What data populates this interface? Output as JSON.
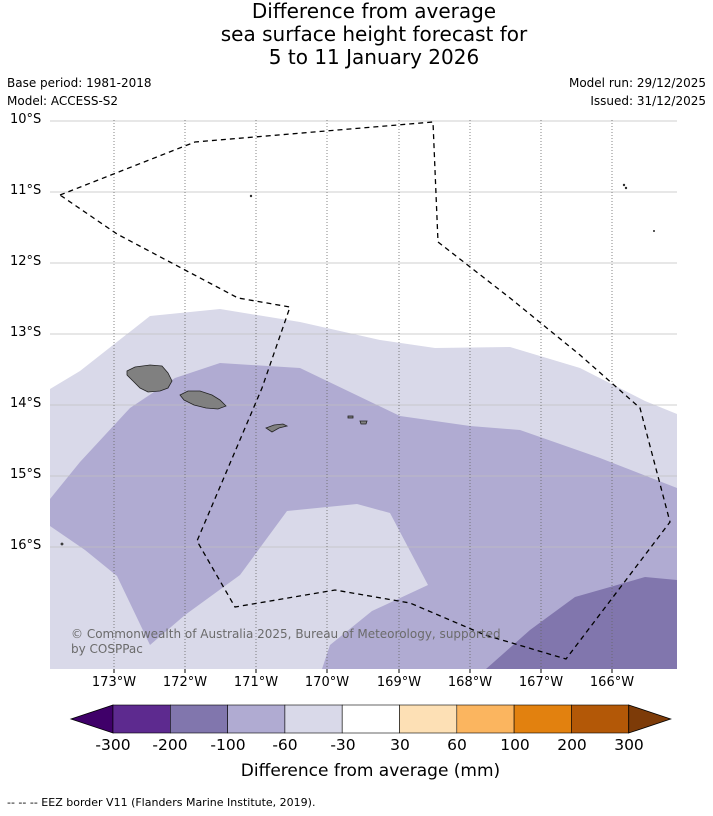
{
  "title": {
    "line1": "Difference from average",
    "line2": "sea surface height forecast for",
    "line3": "5 to 11 January 2026"
  },
  "meta": {
    "base_period": "Base period: 1981-2018",
    "model": "Model: ACCESS-S2",
    "model_run": "Model run: 29/12/2025",
    "issued": "Issued: 31/12/2025"
  },
  "map": {
    "lat_labels": [
      "10°S",
      "11°S",
      "12°S",
      "13°S",
      "14°S",
      "15°S",
      "16°S"
    ],
    "lon_labels": [
      "173°W",
      "172°W",
      "171°W",
      "170°W",
      "169°W",
      "168°W",
      "167°W",
      "166°W"
    ],
    "copyright": "© Commonwealth of Australia 2025, Bureau of Meteorology, supported by COSPPac",
    "shade_colors": {
      "-30_to_-60": "#d9d9e9",
      "-60_to_-100": "#b0abd2",
      "-100_to_-200": "#8176ad",
      "land": "#808080"
    }
  },
  "colorbar": {
    "ticks": [
      "-300",
      "-200",
      "-100",
      "-60",
      "-30",
      "30",
      "60",
      "100",
      "200",
      "300"
    ],
    "colors": [
      "#3f0069",
      "#5d2a8f",
      "#8176ad",
      "#b0abd2",
      "#d9d9e9",
      "#ffffff",
      "#fde0b5",
      "#fbb55f",
      "#e2810f",
      "#b35807",
      "#7d3b08"
    ],
    "label": "Difference from average (mm)"
  },
  "footer": {
    "legend": "--  --  -- EEZ border V11 (Flanders Marine Institute, 2019)."
  }
}
